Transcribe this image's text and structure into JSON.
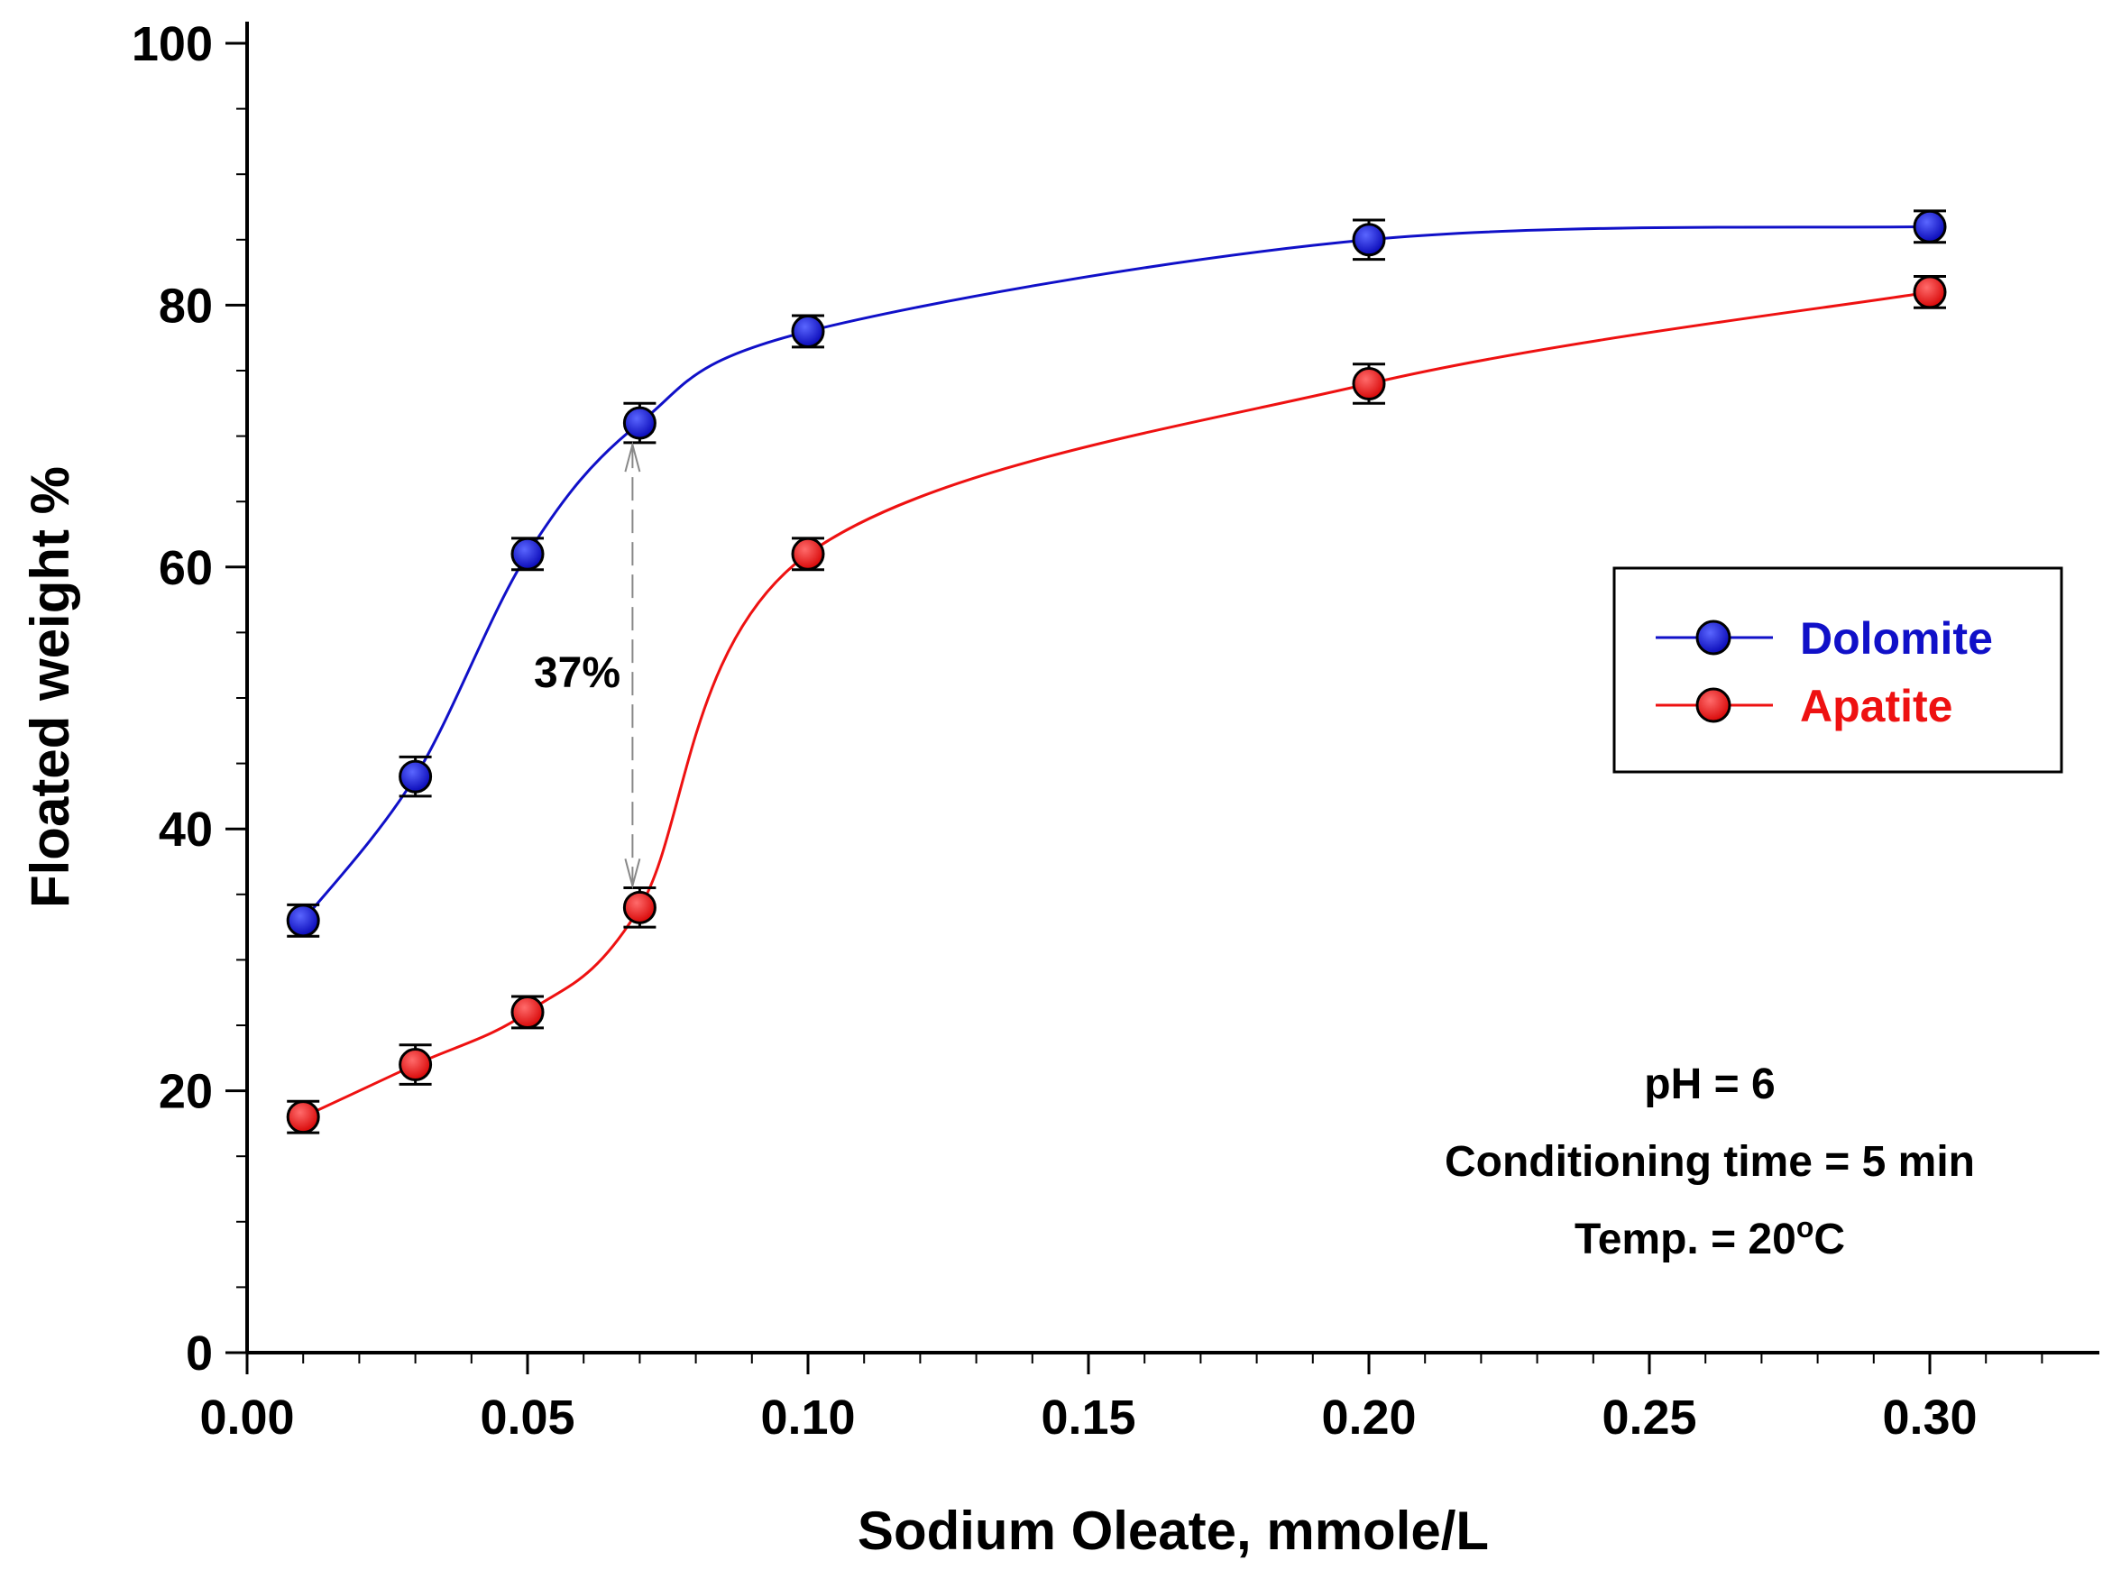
{
  "chart_data": {
    "type": "line",
    "title": "",
    "xlabel": "Sodium Oleate, mmole/L",
    "ylabel": "Floated weight %",
    "xlim": [
      0.0,
      0.33
    ],
    "ylim": [
      0,
      100
    ],
    "grid": false,
    "legend_position": "right-middle",
    "x_ticks": [
      0.0,
      0.05,
      0.1,
      0.15,
      0.2,
      0.25,
      0.3
    ],
    "x_tick_labels": [
      "0.00",
      "0.05",
      "0.10",
      "0.15",
      "0.20",
      "0.25",
      "0.30"
    ],
    "y_ticks": [
      0,
      20,
      40,
      60,
      80,
      100
    ],
    "y_tick_labels": [
      "0",
      "20",
      "40",
      "60",
      "80",
      "100"
    ],
    "series": [
      {
        "name": "Dolomite",
        "color": "#1010c8",
        "marker": "circle",
        "x": [
          0.01,
          0.03,
          0.05,
          0.07,
          0.1,
          0.2,
          0.3
        ],
        "y": [
          33,
          44,
          61,
          71,
          78,
          85,
          86
        ],
        "error": [
          1.2,
          1.5,
          1.2,
          1.5,
          1.2,
          1.5,
          1.2
        ]
      },
      {
        "name": "Apatite",
        "color": "#ee1111",
        "marker": "circle",
        "x": [
          0.01,
          0.03,
          0.05,
          0.07,
          0.1,
          0.2,
          0.3
        ],
        "y": [
          18,
          22,
          26,
          34,
          61,
          74,
          81
        ],
        "error": [
          1.2,
          1.5,
          1.2,
          1.5,
          1.2,
          1.5,
          1.2
        ]
      }
    ],
    "annotations": {
      "difference_label": "37%",
      "difference_x": 0.07,
      "difference_from": 71,
      "difference_to": 34,
      "conditions": {
        "ph": "pH = 6",
        "conditioning_time": "Conditioning time = 5 min",
        "temp_prefix": "Temp. = 20",
        "temp_superscript": "o",
        "temp_suffix": "C"
      }
    }
  }
}
